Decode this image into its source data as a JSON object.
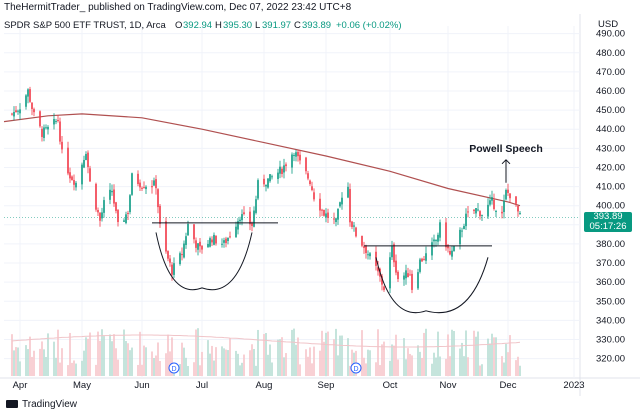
{
  "header": {
    "publisher": "TheHermitTrader_ published on TradingView.com, Dec 07, 2022 23:42 UTC+8"
  },
  "legend": {
    "symbol": "SPDR S&P 500 ETF TRUST, 1D, Arca",
    "open_label": "O",
    "open": "392.94",
    "high_label": "H",
    "high": "395.30",
    "low_label": "L",
    "low": "391.97",
    "close_label": "C",
    "close": "393.89",
    "change": "+0.06 (+0.02%)"
  },
  "currency": "USD",
  "price_tag": {
    "price": "393.89",
    "countdown": "05:17:26"
  },
  "annotation": "Powell Speech",
  "footer": {
    "brand": "TradingView"
  },
  "colors": {
    "up": "#089981",
    "down": "#f23645",
    "ma": "#b05050",
    "pattern": "#131722"
  },
  "chart_data": {
    "type": "candlestick",
    "title": "SPDR S&P 500 ETF TRUST, 1D, Arca",
    "ylabel": "USD",
    "ylim": [
      313,
      494
    ],
    "y_ticks": [
      320,
      330,
      340,
      350,
      360,
      370,
      380,
      390,
      400,
      410,
      420,
      430,
      440,
      450,
      460,
      470,
      480,
      490
    ],
    "x_ticks": [
      {
        "label": "Apr",
        "date": "2022-04-01"
      },
      {
        "label": "May",
        "date": "2022-05-02"
      },
      {
        "label": "Jun",
        "date": "2022-06-01"
      },
      {
        "label": "Jul",
        "date": "2022-07-01"
      },
      {
        "label": "Aug",
        "date": "2022-08-01"
      },
      {
        "label": "Sep",
        "date": "2022-09-01"
      },
      {
        "label": "Oct",
        "date": "2022-10-03"
      },
      {
        "label": "Nov",
        "date": "2022-11-01"
      },
      {
        "label": "Dec",
        "date": "2022-12-01"
      },
      {
        "label": "2023",
        "date": "2023-01-03"
      }
    ],
    "xlim": [
      "2022-03-24",
      "2023-01-06"
    ],
    "dividend_markers": [
      {
        "label": "D",
        "date": "2022-06-17"
      },
      {
        "label": "D",
        "date": "2022-09-16"
      }
    ],
    "price_points": [
      [
        "2022-03-28",
        448
      ],
      [
        "2022-04-01",
        452
      ],
      [
        "2022-04-05",
        460
      ],
      [
        "2022-04-08",
        447
      ],
      [
        "2022-04-12",
        438
      ],
      [
        "2022-04-15",
        440
      ],
      [
        "2022-04-20",
        445
      ],
      [
        "2022-04-22",
        427
      ],
      [
        "2022-04-26",
        416
      ],
      [
        "2022-04-29",
        412
      ],
      [
        "2022-05-04",
        429
      ],
      [
        "2022-05-06",
        412
      ],
      [
        "2022-05-11",
        392
      ],
      [
        "2022-05-13",
        401
      ],
      [
        "2022-05-17",
        408
      ],
      [
        "2022-05-20",
        389
      ],
      [
        "2022-05-25",
        397
      ],
      [
        "2022-05-27",
        415
      ],
      [
        "2022-06-01",
        411
      ],
      [
        "2022-06-03",
        411
      ],
      [
        "2022-06-08",
        411
      ],
      [
        "2022-06-10",
        389
      ],
      [
        "2022-06-13",
        375
      ],
      [
        "2022-06-16",
        366
      ],
      [
        "2022-06-21",
        375
      ],
      [
        "2022-06-24",
        390
      ],
      [
        "2022-06-28",
        380
      ],
      [
        "2022-06-30",
        377
      ],
      [
        "2022-07-06",
        383
      ],
      [
        "2022-07-12",
        380
      ],
      [
        "2022-07-15",
        385
      ],
      [
        "2022-07-20",
        395
      ],
      [
        "2022-07-26",
        390
      ],
      [
        "2022-07-29",
        411
      ],
      [
        "2022-08-04",
        414
      ],
      [
        "2022-08-10",
        419
      ],
      [
        "2022-08-16",
        429
      ],
      [
        "2022-08-19",
        422
      ],
      [
        "2022-08-24",
        413
      ],
      [
        "2022-08-26",
        405
      ],
      [
        "2022-08-31",
        396
      ],
      [
        "2022-09-06",
        391
      ],
      [
        "2022-09-09",
        406
      ],
      [
        "2022-09-12",
        410
      ],
      [
        "2022-09-13",
        393
      ],
      [
        "2022-09-16",
        385
      ],
      [
        "2022-09-21",
        377
      ],
      [
        "2022-09-26",
        367
      ],
      [
        "2022-09-30",
        357
      ],
      [
        "2022-10-04",
        377
      ],
      [
        "2022-10-07",
        362
      ],
      [
        "2022-10-13",
        365
      ],
      [
        "2022-10-14",
        357
      ],
      [
        "2022-10-18",
        371
      ],
      [
        "2022-10-21",
        374
      ],
      [
        "2022-10-26",
        382
      ],
      [
        "2022-10-28",
        389
      ],
      [
        "2022-11-02",
        374
      ],
      [
        "2022-11-04",
        377
      ],
      [
        "2022-11-10",
        394
      ],
      [
        "2022-11-15",
        398
      ],
      [
        "2022-11-18",
        396
      ],
      [
        "2022-11-23",
        402
      ],
      [
        "2022-11-28",
        395
      ],
      [
        "2022-11-30",
        407
      ],
      [
        "2022-12-02",
        406
      ],
      [
        "2022-12-05",
        399
      ],
      [
        "2022-12-07",
        394
      ]
    ],
    "series": [
      {
        "name": "",
        "type": "moving-average",
        "points": [
          [
            "2022-03-24",
            444
          ],
          [
            "2022-04-15",
            447
          ],
          [
            "2022-05-02",
            448
          ],
          [
            "2022-06-01",
            446
          ],
          [
            "2022-07-01",
            440
          ],
          [
            "2022-08-01",
            433
          ],
          [
            "2022-09-01",
            426
          ],
          [
            "2022-10-03",
            418
          ],
          [
            "2022-11-01",
            409
          ],
          [
            "2022-12-01",
            402
          ],
          [
            "2022-12-07",
            400
          ]
        ]
      }
    ],
    "annotations": [
      {
        "type": "neckline",
        "start": "2022-06-06",
        "end": "2022-08-08",
        "value": 391
      },
      {
        "type": "neckline",
        "start": "2022-09-20",
        "end": "2022-11-23",
        "value": 379
      },
      {
        "type": "cup",
        "start": "2022-06-08",
        "end": "2022-07-26",
        "bottom_date": "2022-07-01",
        "bottom_value": 357,
        "top_value": 386
      },
      {
        "type": "cup",
        "start": "2022-09-26",
        "end": "2022-11-21",
        "bottom_date": "2022-10-21",
        "bottom_value": 345,
        "top_value": 373
      },
      {
        "type": "arrow",
        "date": "2022-11-30",
        "from": 412,
        "to": 424,
        "label": "Powell Speech"
      }
    ]
  }
}
